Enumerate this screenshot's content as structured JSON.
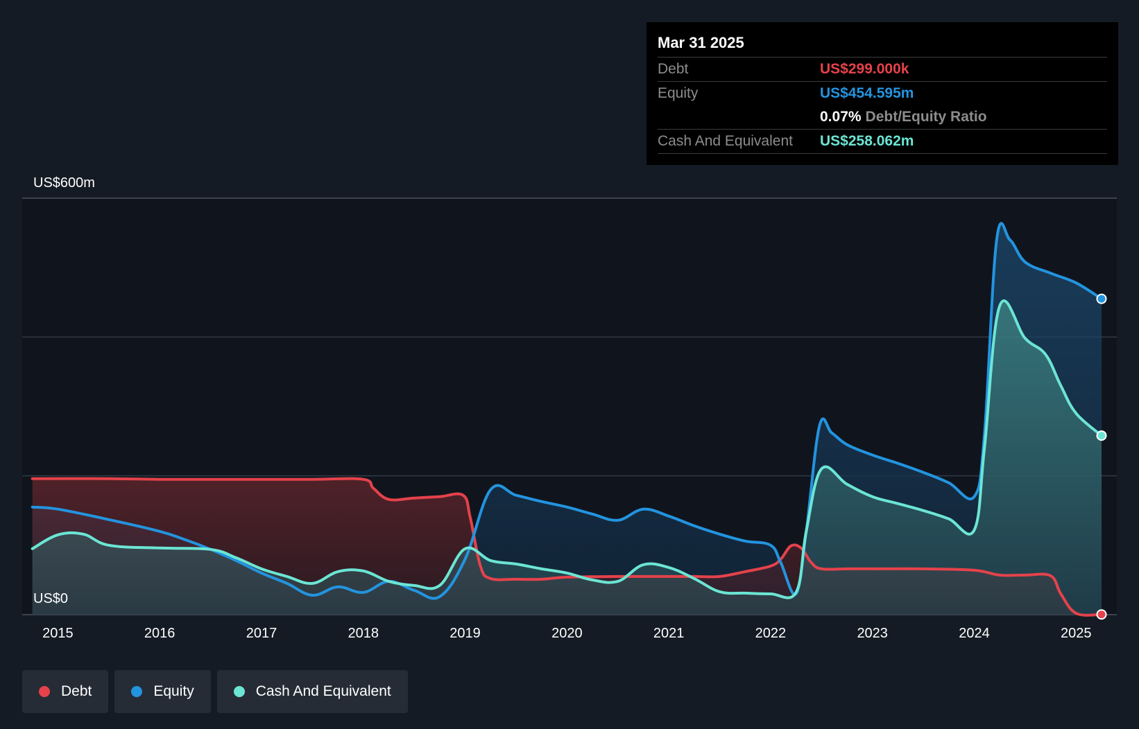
{
  "tooltip": {
    "date": "Mar 31 2025",
    "debt_label": "Debt",
    "debt_value": "US$299.000k",
    "equity_label": "Equity",
    "equity_value": "US$454.595m",
    "ratio_value": "0.07%",
    "ratio_label": "Debt/Equity Ratio",
    "cash_label": "Cash And Equivalent",
    "cash_value": "US$258.062m"
  },
  "legend": [
    {
      "label": "Debt",
      "color": "#e5424b"
    },
    {
      "label": "Equity",
      "color": "#2394df"
    },
    {
      "label": "Cash And Equivalent",
      "color": "#6ce5d4"
    }
  ],
  "chart_data": {
    "type": "area",
    "y_top_label": "US$600m",
    "y_bottom_label": "US$0",
    "ylim": [
      0,
      600
    ],
    "xlim": [
      2014.65,
      2025.4
    ],
    "grid": true,
    "x_ticks": [
      "2015",
      "2016",
      "2017",
      "2018",
      "2019",
      "2020",
      "2021",
      "2022",
      "2023",
      "2024",
      "2025"
    ],
    "series": [
      {
        "name": "Debt",
        "color": "#e5424b",
        "points": [
          [
            2014.75,
            196
          ],
          [
            2015.5,
            196
          ],
          [
            2016,
            195
          ],
          [
            2016.5,
            195
          ],
          [
            2017,
            195
          ],
          [
            2017.5,
            195
          ],
          [
            2018,
            195
          ],
          [
            2018.1,
            182
          ],
          [
            2018.25,
            166
          ],
          [
            2018.5,
            168
          ],
          [
            2018.75,
            170
          ],
          [
            2018.98,
            172
          ],
          [
            2019.05,
            140
          ],
          [
            2019.15,
            70
          ],
          [
            2019.25,
            52
          ],
          [
            2019.5,
            51
          ],
          [
            2019.75,
            51
          ],
          [
            2020,
            54
          ],
          [
            2020.5,
            55
          ],
          [
            2021,
            55
          ],
          [
            2021.25,
            55
          ],
          [
            2021.5,
            55
          ],
          [
            2021.75,
            62
          ],
          [
            2022,
            70
          ],
          [
            2022.1,
            80
          ],
          [
            2022.2,
            99
          ],
          [
            2022.3,
            96
          ],
          [
            2022.4,
            75
          ],
          [
            2022.5,
            66
          ],
          [
            2022.75,
            66
          ],
          [
            2023,
            66
          ],
          [
            2023.5,
            66
          ],
          [
            2024,
            64
          ],
          [
            2024.25,
            57
          ],
          [
            2024.5,
            57
          ],
          [
            2024.75,
            56
          ],
          [
            2024.85,
            30
          ],
          [
            2025,
            2
          ],
          [
            2025.25,
            0.3
          ]
        ]
      },
      {
        "name": "Equity",
        "color": "#2394df",
        "points": [
          [
            2014.75,
            155
          ],
          [
            2015,
            152
          ],
          [
            2015.5,
            137
          ],
          [
            2016,
            120
          ],
          [
            2016.25,
            108
          ],
          [
            2016.5,
            94
          ],
          [
            2016.75,
            78
          ],
          [
            2017,
            60
          ],
          [
            2017.25,
            45
          ],
          [
            2017.5,
            28
          ],
          [
            2017.75,
            40
          ],
          [
            2018,
            32
          ],
          [
            2018.25,
            48
          ],
          [
            2018.5,
            35
          ],
          [
            2018.75,
            26
          ],
          [
            2019,
            80
          ],
          [
            2019.25,
            180
          ],
          [
            2019.5,
            172
          ],
          [
            2019.75,
            163
          ],
          [
            2020,
            155
          ],
          [
            2020.25,
            145
          ],
          [
            2020.5,
            136
          ],
          [
            2020.75,
            152
          ],
          [
            2021,
            142
          ],
          [
            2021.25,
            128
          ],
          [
            2021.5,
            116
          ],
          [
            2021.75,
            106
          ],
          [
            2022,
            100
          ],
          [
            2022.1,
            75
          ],
          [
            2022.25,
            30
          ],
          [
            2022.35,
            120
          ],
          [
            2022.48,
            272
          ],
          [
            2022.6,
            262
          ],
          [
            2022.75,
            245
          ],
          [
            2023,
            230
          ],
          [
            2023.25,
            218
          ],
          [
            2023.5,
            205
          ],
          [
            2023.75,
            190
          ],
          [
            2024,
            170
          ],
          [
            2024.1,
            260
          ],
          [
            2024.22,
            540
          ],
          [
            2024.35,
            540
          ],
          [
            2024.5,
            508
          ],
          [
            2024.75,
            492
          ],
          [
            2025,
            478
          ],
          [
            2025.25,
            455
          ]
        ]
      },
      {
        "name": "Cash And Equivalent",
        "color": "#6ce5d4",
        "points": [
          [
            2014.75,
            95
          ],
          [
            2015,
            115
          ],
          [
            2015.25,
            116
          ],
          [
            2015.5,
            100
          ],
          [
            2016,
            96
          ],
          [
            2016.5,
            94
          ],
          [
            2016.75,
            82
          ],
          [
            2017,
            66
          ],
          [
            2017.25,
            55
          ],
          [
            2017.5,
            45
          ],
          [
            2017.75,
            62
          ],
          [
            2018,
            63
          ],
          [
            2018.25,
            48
          ],
          [
            2018.5,
            42
          ],
          [
            2018.75,
            42
          ],
          [
            2019,
            95
          ],
          [
            2019.25,
            78
          ],
          [
            2019.5,
            73
          ],
          [
            2019.75,
            66
          ],
          [
            2020,
            60
          ],
          [
            2020.25,
            50
          ],
          [
            2020.5,
            48
          ],
          [
            2020.75,
            72
          ],
          [
            2021,
            68
          ],
          [
            2021.25,
            52
          ],
          [
            2021.5,
            33
          ],
          [
            2021.75,
            31
          ],
          [
            2022,
            30
          ],
          [
            2022.25,
            32
          ],
          [
            2022.35,
            120
          ],
          [
            2022.5,
            210
          ],
          [
            2022.75,
            188
          ],
          [
            2023,
            170
          ],
          [
            2023.25,
            160
          ],
          [
            2023.5,
            150
          ],
          [
            2023.75,
            138
          ],
          [
            2024,
            122
          ],
          [
            2024.1,
            240
          ],
          [
            2024.25,
            445
          ],
          [
            2024.5,
            398
          ],
          [
            2024.7,
            375
          ],
          [
            2024.85,
            330
          ],
          [
            2025,
            290
          ],
          [
            2025.25,
            258
          ]
        ]
      }
    ],
    "tooltip_date_x": 2025.25
  }
}
